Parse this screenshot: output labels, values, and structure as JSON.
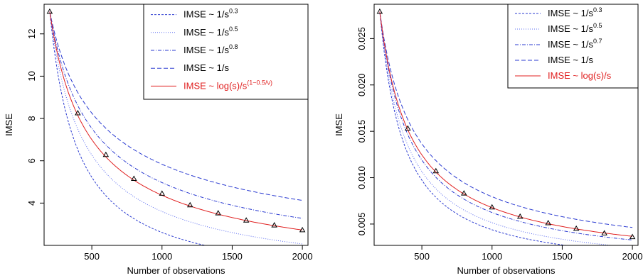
{
  "chart_data": [
    {
      "type": "line",
      "xlabel": "Number of observations",
      "ylabel": "IMSE",
      "xlim": [
        160,
        2040
      ],
      "ylim": [
        2.0,
        13.4
      ],
      "xticks": [
        500,
        1000,
        1500,
        2000
      ],
      "yticks": [
        4,
        6,
        8,
        10,
        12
      ],
      "grid": false,
      "legend_position": "top-right",
      "points": {
        "x": [
          200,
          400,
          600,
          800,
          1000,
          1200,
          1400,
          1600,
          1800,
          2000
        ],
        "y": [
          13.05,
          8.25,
          6.28,
          5.15,
          4.45,
          3.9,
          3.52,
          3.18,
          2.95,
          2.72
        ]
      },
      "series": [
        {
          "name": "IMSE ~ 1/s",
          "name_sup": "0.3",
          "color": "#2b3bd1",
          "dash": "dotted-fine",
          "x": [
            200,
            2000
          ],
          "y_at_start": 13.05,
          "exponent": 1.0
        },
        {
          "name": "IMSE ~ 1/s",
          "name_sup": "0.5",
          "color": "#5a6bf0",
          "dash": "dotted",
          "x": [
            200,
            2000
          ],
          "y_at_start": 13.05,
          "exponent": 0.8
        },
        {
          "name": "IMSE ~ 1/s",
          "name_sup": "0.8",
          "color": "#2b3bd1",
          "dash": "dashdot",
          "x": [
            200,
            2000
          ],
          "y_at_start": 13.05,
          "exponent": 0.6
        },
        {
          "name": "IMSE ~ 1/s",
          "name_sup": "",
          "color": "#2b3bd1",
          "dash": "dashed",
          "x": [
            200,
            2000
          ],
          "y_at_start": 13.05,
          "exponent": 0.5
        },
        {
          "name": "IMSE ~ log(s)/s",
          "name_sup": "(1−0.5/ν)",
          "color": "#e02020",
          "dash": "solid",
          "x": [
            200,
            2000
          ],
          "y_at_start": 13.05,
          "exponent": 0.68
        }
      ]
    },
    {
      "type": "line",
      "xlabel": "Number of observations",
      "ylabel": "IMSE",
      "xlim": [
        160,
        2040
      ],
      "ylim": [
        0.0027,
        0.0287
      ],
      "xticks": [
        500,
        1000,
        1500,
        2000
      ],
      "yticks": [
        0.005,
        0.01,
        0.015,
        0.02,
        0.025
      ],
      "ytick_labels": [
        "0.005",
        "0.010",
        "0.015",
        "0.020",
        "0.025"
      ],
      "grid": false,
      "legend_position": "top-right",
      "points": {
        "x": [
          200,
          400,
          600,
          800,
          1000,
          1200,
          1400,
          1600,
          1800,
          2000
        ],
        "y": [
          0.0279,
          0.0153,
          0.0107,
          0.0083,
          0.0068,
          0.0058,
          0.0051,
          0.0045,
          0.004,
          0.0036
        ]
      },
      "series": [
        {
          "name": "IMSE ~ 1/s",
          "name_sup": "0.3",
          "color": "#2b3bd1",
          "dash": "dotted-fine",
          "x": [
            200,
            2000
          ],
          "y_at_start": 0.0279,
          "exponent": 1.15
        },
        {
          "name": "IMSE ~ 1/s",
          "name_sup": "0.5",
          "color": "#5a6bf0",
          "dash": "dotted",
          "x": [
            200,
            2000
          ],
          "y_at_start": 0.0279,
          "exponent": 1.05
        },
        {
          "name": "IMSE ~ 1/s",
          "name_sup": "0.7",
          "color": "#2b3bd1",
          "dash": "dashdot",
          "x": [
            200,
            2000
          ],
          "y_at_start": 0.0279,
          "exponent": 0.93
        },
        {
          "name": "IMSE ~ 1/s",
          "name_sup": "",
          "color": "#2b3bd1",
          "dash": "dashed",
          "x": [
            200,
            2000
          ],
          "y_at_start": 0.0279,
          "exponent": 0.78
        },
        {
          "name": "IMSE ~ log(s)/s",
          "name_sup": "",
          "color": "#e02020",
          "dash": "solid",
          "x": [
            200,
            2000
          ],
          "y_at_start": 0.0279,
          "exponent": 0.88
        }
      ]
    }
  ]
}
